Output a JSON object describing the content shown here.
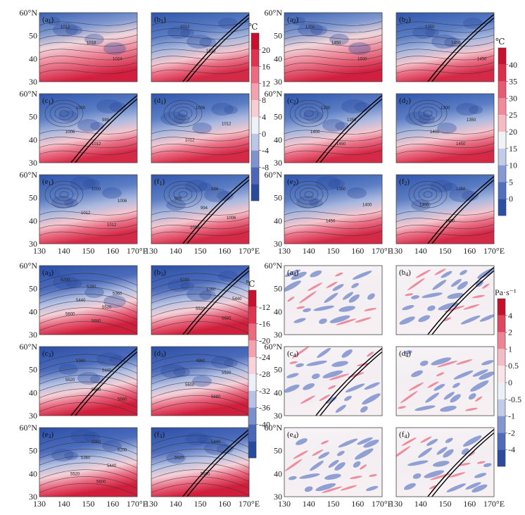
{
  "groups": [
    {
      "id": "g1",
      "colorbar": {
        "unit": "℃",
        "ticks": [
          "20",
          "16",
          "12",
          "8",
          "4",
          "0",
          "-4",
          "-8"
        ],
        "colors": [
          "#c8102e",
          "#e0334e",
          "#ec6b80",
          "#f3a1ae",
          "#f8cdd4",
          "#eef0f8",
          "#bcc6e6",
          "#8093cf",
          "#4d67b8",
          "#2a4a9e"
        ],
        "warm_first": true
      },
      "style": "surface",
      "panels": [
        {
          "label": "a",
          "sub": "1",
          "contour_labels": [
            "1012",
            "1018",
            "1024"
          ],
          "track": false
        },
        {
          "label": "b",
          "sub": "1",
          "contour_labels": [
            "1012",
            "1018"
          ],
          "track": true
        },
        {
          "label": "c",
          "sub": "1",
          "contour_labels": [
            "1000",
            "988",
            "1006",
            "1012"
          ],
          "track": true
        },
        {
          "label": "d",
          "sub": "1",
          "contour_labels": [
            "1006",
            "1012",
            "1012"
          ],
          "track": false
        },
        {
          "label": "e",
          "sub": "1",
          "contour_labels": [
            "1000",
            "1006",
            "1012",
            "1012"
          ],
          "track": false
        },
        {
          "label": "f",
          "sub": "1",
          "contour_labels": [
            "994",
            "988",
            "994",
            "1006",
            "1012"
          ],
          "track": true
        }
      ]
    },
    {
      "id": "g2",
      "colorbar": {
        "unit": "℃",
        "ticks": [
          "40",
          "35",
          "30",
          "25",
          "20",
          "15",
          "10",
          "5",
          "0"
        ],
        "colors": [
          "#c8102e",
          "#dd2f4c",
          "#e85a73",
          "#f08a9c",
          "#f6bcc6",
          "#f1f2f8",
          "#c2cbe8",
          "#8799d3",
          "#5370bf",
          "#2d4fa3"
        ],
        "warm_first": true
      },
      "style": "surface",
      "panels": [
        {
          "label": "a",
          "sub": "2",
          "contour_labels": [
            "1350",
            "1450",
            "1500"
          ],
          "track": false
        },
        {
          "label": "b",
          "sub": "2",
          "contour_labels": [
            "1350",
            "1400",
            "1450"
          ],
          "track": true
        },
        {
          "label": "c",
          "sub": "2",
          "contour_labels": [
            "1300",
            "1350",
            "1400",
            "1450"
          ],
          "track": true
        },
        {
          "label": "d",
          "sub": "2",
          "contour_labels": [
            "1300",
            "1350",
            "1400",
            "1450"
          ],
          "track": false
        },
        {
          "label": "e",
          "sub": "2",
          "contour_labels": [
            "1350",
            "1400",
            "1450"
          ],
          "track": false
        },
        {
          "label": "f",
          "sub": "2",
          "contour_labels": [
            "1350",
            "1400",
            "1450"
          ],
          "track": true
        }
      ]
    },
    {
      "id": "g3",
      "colorbar": {
        "unit": "℃",
        "ticks": [
          "-12",
          "-16",
          "-20",
          "-24",
          "-28",
          "-32",
          "-36",
          "-40"
        ],
        "colors": [
          "#c8102e",
          "#dd3651",
          "#ea6a80",
          "#f3a3b0",
          "#f9d3da",
          "#eef0f8",
          "#b7c2e4",
          "#7b8fcc",
          "#4a66b6",
          "#284a9d"
        ],
        "warm_first": true
      },
      "style": "upper",
      "panels": [
        {
          "label": "a",
          "sub": "3",
          "contour_labels": [
            "5200",
            "5280",
            "5360",
            "5440",
            "5520",
            "5600",
            "5680"
          ],
          "track": false
        },
        {
          "label": "b",
          "sub": "3",
          "contour_labels": [
            "5280",
            "5360",
            "5440",
            "5520",
            "5680"
          ],
          "track": true
        },
        {
          "label": "c",
          "sub": "3",
          "contour_labels": [
            "5360",
            "5440",
            "5520",
            "5600",
            "5680"
          ],
          "track": true
        },
        {
          "label": "d",
          "sub": "3",
          "contour_labels": [
            "4960",
            "5520",
            "5600",
            "5680"
          ],
          "track": false
        },
        {
          "label": "e",
          "sub": "3",
          "contour_labels": [
            "4960",
            "5200",
            "5360",
            "5440",
            "5520",
            "5600"
          ],
          "track": false
        },
        {
          "label": "f",
          "sub": "3",
          "contour_labels": [
            "5440",
            "5520",
            "5600"
          ],
          "track": true
        }
      ]
    },
    {
      "id": "g4",
      "colorbar": {
        "unit": "Pa·s⁻¹",
        "ticks": [
          "4",
          "2",
          "1",
          "0.5",
          "0",
          "-0.5",
          "-1",
          "-2",
          "-4"
        ],
        "colors": [
          "#c8102e",
          "#e3455f",
          "#ef8394",
          "#f6bcc5",
          "#fbe4e8",
          "#eef0f8",
          "#c2cbe8",
          "#8396d0",
          "#4f6bbb",
          "#2a4b9f"
        ],
        "warm_first": true
      },
      "style": "omega",
      "panels": [
        {
          "label": "a",
          "sub": "4",
          "contour_labels": [],
          "track": false
        },
        {
          "label": "b",
          "sub": "4",
          "contour_labels": [],
          "track": true
        },
        {
          "label": "c",
          "sub": "4",
          "contour_labels": [],
          "track": true
        },
        {
          "label": "d",
          "sub": "4",
          "contour_labels": [],
          "track": false
        },
        {
          "label": "e",
          "sub": "4",
          "contour_labels": [],
          "track": false
        },
        {
          "label": "f",
          "sub": "4",
          "contour_labels": [],
          "track": true
        }
      ]
    }
  ],
  "axes": {
    "y_ticks": [
      "60°N",
      "50",
      "40",
      "30"
    ],
    "x_ticks": [
      "130",
      "140",
      "150",
      "160",
      "170°E"
    ]
  }
}
